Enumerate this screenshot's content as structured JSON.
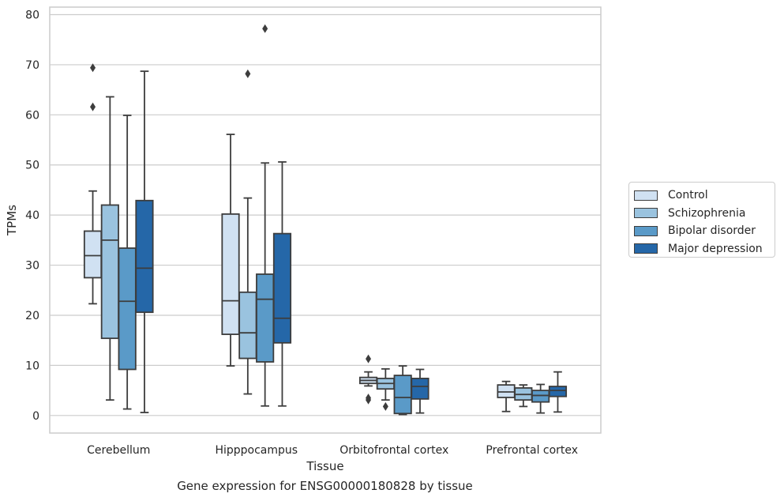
{
  "chart_data": {
    "type": "box",
    "caption": "Gene expression for ENSG00000180828 by tissue",
    "xlabel": "Tissue",
    "ylabel": "TPMs",
    "ylim": [
      -3.5,
      81.5
    ],
    "yticks": [
      0,
      10,
      20,
      30,
      40,
      50,
      60,
      70,
      80
    ],
    "grid": true,
    "legend_position": "right",
    "categories": [
      "Cerebellum",
      "Hipppocampus",
      "Orbitofrontal cortex",
      "Prefrontal cortex"
    ],
    "series": [
      {
        "name": "Control",
        "color": "#d0e1f2",
        "boxes": [
          {
            "whisker_low": 22.3,
            "q1": 27.5,
            "median": 31.9,
            "q3": 36.8,
            "whisker_high": 44.8,
            "outliers": [
              61.6,
              69.4
            ]
          },
          {
            "whisker_low": 9.9,
            "q1": 16.2,
            "median": 22.9,
            "q3": 40.2,
            "whisker_high": 56.1,
            "outliers": []
          },
          {
            "whisker_low": 5.9,
            "q1": 6.4,
            "median": 7.0,
            "q3": 7.6,
            "whisker_high": 8.7,
            "outliers": [
              11.3,
              3.1,
              3.5
            ]
          },
          {
            "whisker_low": 0.8,
            "q1": 3.6,
            "median": 4.7,
            "q3": 6.1,
            "whisker_high": 6.8,
            "outliers": []
          }
        ]
      },
      {
        "name": "Schizophrenia",
        "color": "#9ac3df",
        "boxes": [
          {
            "whisker_low": 3.1,
            "q1": 15.4,
            "median": 35.0,
            "q3": 42.0,
            "whisker_high": 63.6,
            "outliers": []
          },
          {
            "whisker_low": 4.3,
            "q1": 11.4,
            "median": 16.5,
            "q3": 24.6,
            "whisker_high": 43.4,
            "outliers": [
              68.2
            ]
          },
          {
            "whisker_low": 3.1,
            "q1": 5.3,
            "median": 6.4,
            "q3": 7.4,
            "whisker_high": 9.3,
            "outliers": [
              1.8
            ]
          },
          {
            "whisker_low": 1.8,
            "q1": 3.1,
            "median": 4.2,
            "q3": 5.5,
            "whisker_high": 6.1,
            "outliers": []
          }
        ]
      },
      {
        "name": "Bipolar disorder",
        "color": "#5a9ac8",
        "boxes": [
          {
            "whisker_low": 1.3,
            "q1": 9.2,
            "median": 22.8,
            "q3": 33.4,
            "whisker_high": 59.9,
            "outliers": []
          },
          {
            "whisker_low": 1.9,
            "q1": 10.7,
            "median": 23.2,
            "q3": 28.2,
            "whisker_high": 50.4,
            "outliers": [
              77.2
            ]
          },
          {
            "whisker_low": 0.2,
            "q1": 0.4,
            "median": 3.6,
            "q3": 8.0,
            "whisker_high": 9.9,
            "outliers": []
          },
          {
            "whisker_low": 0.5,
            "q1": 2.7,
            "median": 4.0,
            "q3": 5.0,
            "whisker_high": 6.2,
            "outliers": []
          }
        ]
      },
      {
        "name": "Major depression",
        "color": "#2567a8",
        "boxes": [
          {
            "whisker_low": 0.6,
            "q1": 20.6,
            "median": 29.4,
            "q3": 42.9,
            "whisker_high": 68.7,
            "outliers": []
          },
          {
            "whisker_low": 1.9,
            "q1": 14.5,
            "median": 19.4,
            "q3": 36.3,
            "whisker_high": 50.6,
            "outliers": []
          },
          {
            "whisker_low": 0.5,
            "q1": 3.3,
            "median": 5.8,
            "q3": 7.4,
            "whisker_high": 9.2,
            "outliers": []
          },
          {
            "whisker_low": 0.7,
            "q1": 3.8,
            "median": 5.0,
            "q3": 5.8,
            "whisker_high": 8.7,
            "outliers": []
          }
        ]
      }
    ]
  }
}
